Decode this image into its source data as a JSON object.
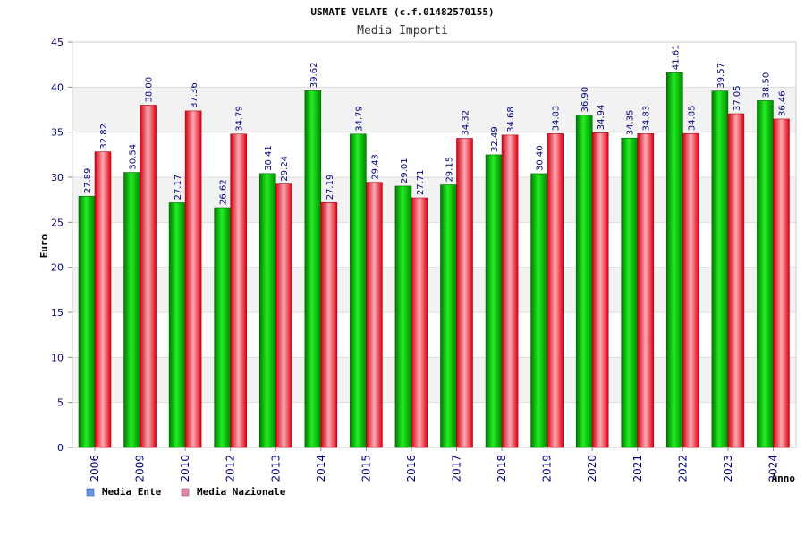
{
  "chart_data": {
    "type": "bar",
    "title": "USMATE VELATE (c.f.01482570155)",
    "subtitle": "Media Importi",
    "ylabel": "Euro",
    "xlabel": "Anno",
    "ylim": [
      0,
      45
    ],
    "yticks": [
      0,
      5,
      10,
      15,
      20,
      25,
      30,
      35,
      40,
      45
    ],
    "yticks_labels": [
      "0",
      "5",
      "10",
      "15",
      "20",
      "25",
      "30",
      "35",
      "40",
      "45"
    ],
    "grid": true,
    "legend_position": "bottom-left",
    "categories": [
      "2006",
      "2009",
      "2010",
      "2012",
      "2013",
      "2014",
      "2015",
      "2016",
      "2017",
      "2018",
      "2019",
      "2020",
      "2021",
      "2022",
      "2023",
      "2024"
    ],
    "series": [
      {
        "name": "Media Ente",
        "color": "#00cc00",
        "legend_color": "#6699ee",
        "values": [
          27.89,
          30.54,
          27.17,
          26.62,
          30.41,
          39.62,
          34.79,
          29.01,
          29.15,
          32.49,
          30.4,
          36.9,
          34.35,
          41.61,
          39.57,
          38.5
        ],
        "labels": [
          "27.89",
          "30.54",
          "27.17",
          "26.62",
          "30.41",
          "39.62",
          "34.79",
          "29.01",
          "29.15",
          "32.49",
          "30.40",
          "36.90",
          "34.35",
          "41.61",
          "39.57",
          "38.50"
        ]
      },
      {
        "name": "Media Nazionale",
        "color": "#ee1122",
        "legend_color": "#dd88aa",
        "values": [
          32.82,
          38.0,
          37.36,
          34.79,
          29.24,
          27.19,
          29.43,
          27.71,
          34.32,
          34.68,
          34.83,
          34.94,
          34.83,
          34.85,
          37.05,
          36.46
        ],
        "labels": [
          "32.82",
          "38.00",
          "37.36",
          "34.79",
          "29.24",
          "27.19",
          "29.43",
          "27.71",
          "34.32",
          "34.68",
          "34.83",
          "34.94",
          "34.83",
          "34.85",
          "37.05",
          "36.46"
        ]
      }
    ]
  }
}
